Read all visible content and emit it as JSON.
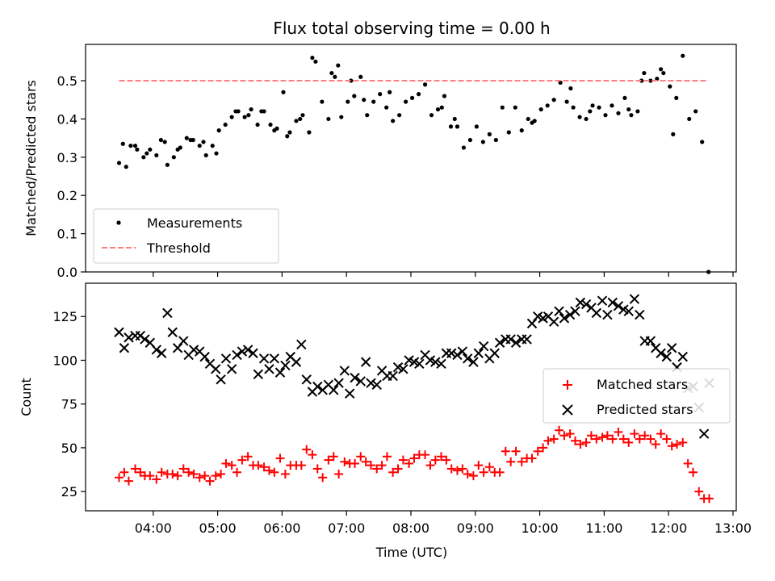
{
  "chart_data": [
    {
      "type": "scatter",
      "title": "Flux total observing time = 0.00 h",
      "xlabel": "",
      "ylabel": "Matched/Predicted stars",
      "xlim_hours": [
        2.95,
        13.05
      ],
      "ylim": [
        0,
        0.595
      ],
      "yticks": [
        0.0,
        0.1,
        0.2,
        0.3,
        0.4,
        0.5
      ],
      "ytick_labels": [
        "0.0",
        "0.1",
        "0.2",
        "0.3",
        "0.4",
        "0.5"
      ],
      "legend_position": "lower-left",
      "series": [
        {
          "name": "Measurements",
          "marker": "dot",
          "color": "#000000",
          "x": [
            3.47,
            3.58,
            3.65,
            3.75,
            3.85,
            3.95,
            4.05,
            4.12,
            4.22,
            4.32,
            4.42,
            4.52,
            4.62,
            4.72,
            4.82,
            4.92,
            5.02,
            5.12,
            5.22,
            5.32,
            5.42,
            5.52,
            5.62,
            5.72,
            5.82,
            5.92,
            6.02,
            6.12,
            6.22,
            6.32,
            6.42,
            6.52,
            6.62,
            6.72,
            6.82,
            6.92,
            7.02,
            7.12,
            7.22,
            7.32,
            7.42,
            7.52,
            7.62,
            7.72,
            7.82,
            7.92,
            8.02,
            8.12,
            8.22,
            8.32,
            8.42,
            8.52,
            8.62,
            8.72,
            8.82,
            8.92,
            9.02,
            9.12,
            9.22,
            9.32,
            9.42,
            9.52,
            9.62,
            9.72,
            9.82,
            9.92,
            10.02,
            10.12,
            10.22,
            10.32,
            10.42,
            10.52,
            10.62,
            10.72,
            10.82,
            10.92,
            11.02,
            11.12,
            11.22,
            11.32,
            11.42,
            11.52,
            11.62,
            11.72,
            11.82,
            11.92,
            12.02,
            12.12,
            12.22,
            12.32,
            12.42,
            12.52,
            12.62,
            3.53,
            3.72,
            3.9,
            4.18,
            4.38,
            4.58,
            4.78,
            4.98,
            5.28,
            5.48,
            5.68,
            5.88,
            6.08,
            6.28,
            6.47,
            6.77,
            6.87,
            7.07,
            7.27,
            7.67,
            8.48,
            8.68,
            9.88,
            10.48,
            10.78,
            11.38,
            11.58,
            11.88,
            12.07
          ],
          "y": [
            0.285,
            0.275,
            0.33,
            0.32,
            0.3,
            0.32,
            0.305,
            0.345,
            0.28,
            0.3,
            0.325,
            0.35,
            0.345,
            0.33,
            0.305,
            0.33,
            0.37,
            0.385,
            0.405,
            0.42,
            0.405,
            0.425,
            0.385,
            0.42,
            0.385,
            0.375,
            0.47,
            0.365,
            0.395,
            0.41,
            0.365,
            0.55,
            0.445,
            0.4,
            0.51,
            0.405,
            0.445,
            0.46,
            0.51,
            0.41,
            0.445,
            0.465,
            0.43,
            0.395,
            0.41,
            0.445,
            0.455,
            0.465,
            0.49,
            0.41,
            0.425,
            0.46,
            0.38,
            0.38,
            0.325,
            0.345,
            0.38,
            0.34,
            0.36,
            0.345,
            0.43,
            0.365,
            0.43,
            0.37,
            0.4,
            0.395,
            0.425,
            0.435,
            0.45,
            0.495,
            0.445,
            0.43,
            0.405,
            0.4,
            0.435,
            0.43,
            0.41,
            0.435,
            0.415,
            0.455,
            0.41,
            0.42,
            0.52,
            0.5,
            0.505,
            0.52,
            0.485,
            0.455,
            0.565,
            0.4,
            0.42,
            0.34,
            0.0,
            0.335,
            0.33,
            0.31,
            0.34,
            0.32,
            0.345,
            0.34,
            0.31,
            0.42,
            0.41,
            0.42,
            0.37,
            0.355,
            0.4,
            0.56,
            0.52,
            0.54,
            0.5,
            0.45,
            0.47,
            0.43,
            0.4,
            0.39,
            0.48,
            0.42,
            0.425,
            0.5,
            0.53,
            0.36
          ]
        },
        {
          "name": "Threshold",
          "marker": "dashed-line",
          "color": "#ff7f7f",
          "x": [
            3.47,
            12.62
          ],
          "y": [
            0.5,
            0.5
          ]
        }
      ]
    },
    {
      "type": "scatter",
      "title": "",
      "xlabel": "Time (UTC)",
      "ylabel": "Count",
      "xlim_hours": [
        2.95,
        13.05
      ],
      "ylim": [
        14,
        144
      ],
      "yticks": [
        25,
        50,
        75,
        100,
        125
      ],
      "ytick_labels": [
        "25",
        "50",
        "75",
        "100",
        "125"
      ],
      "xticks_hours": [
        4,
        5,
        6,
        7,
        8,
        9,
        10,
        11,
        12,
        13
      ],
      "xtick_labels": [
        "04:00",
        "05:00",
        "06:00",
        "07:00",
        "08:00",
        "09:00",
        "10:00",
        "11:00",
        "12:00",
        "13:00"
      ],
      "legend_position": "center-right",
      "series": [
        {
          "name": "Matched stars",
          "marker": "plus",
          "color": "#ff0000",
          "x": [
            3.47,
            3.55,
            3.62,
            3.72,
            3.8,
            3.87,
            3.95,
            4.05,
            4.13,
            4.22,
            4.3,
            4.38,
            4.47,
            4.55,
            4.63,
            4.72,
            4.8,
            4.88,
            4.97,
            5.05,
            5.13,
            5.22,
            5.3,
            5.38,
            5.47,
            5.55,
            5.63,
            5.72,
            5.8,
            5.88,
            5.97,
            6.05,
            6.13,
            6.22,
            6.3,
            6.38,
            6.47,
            6.55,
            6.63,
            6.72,
            6.8,
            6.88,
            6.97,
            7.05,
            7.13,
            7.22,
            7.3,
            7.38,
            7.47,
            7.55,
            7.63,
            7.72,
            7.8,
            7.88,
            7.97,
            8.05,
            8.13,
            8.22,
            8.3,
            8.38,
            8.47,
            8.55,
            8.63,
            8.72,
            8.8,
            8.88,
            8.97,
            9.05,
            9.13,
            9.22,
            9.3,
            9.38,
            9.47,
            9.55,
            9.63,
            9.72,
            9.8,
            9.88,
            9.97,
            10.05,
            10.13,
            10.22,
            10.3,
            10.38,
            10.47,
            10.55,
            10.63,
            10.72,
            10.8,
            10.88,
            10.97,
            11.05,
            11.13,
            11.22,
            11.3,
            11.38,
            11.47,
            11.55,
            11.63,
            11.72,
            11.8,
            11.88,
            11.97,
            12.05,
            12.13,
            12.22,
            12.3,
            12.38,
            12.47,
            12.55,
            12.63
          ],
          "y": [
            33,
            36,
            31,
            38,
            36,
            34,
            34,
            32,
            36,
            35,
            35,
            34,
            38,
            36,
            35,
            33,
            34,
            31,
            34,
            35,
            41,
            40,
            36,
            43,
            45,
            40,
            40,
            39,
            37,
            36,
            44,
            35,
            40,
            40,
            40,
            49,
            46,
            38,
            33,
            43,
            45,
            35,
            42,
            41,
            41,
            45,
            42,
            40,
            38,
            40,
            45,
            36,
            38,
            43,
            41,
            44,
            46,
            46,
            40,
            43,
            45,
            43,
            38,
            37,
            38,
            35,
            34,
            40,
            36,
            39,
            36,
            36,
            48,
            42,
            48,
            42,
            44,
            44,
            48,
            50,
            54,
            55,
            60,
            57,
            58,
            54,
            52,
            53,
            57,
            55,
            56,
            57,
            55,
            59,
            55,
            53,
            58,
            55,
            57,
            55,
            52,
            58,
            55,
            51,
            52,
            53,
            41,
            36,
            25,
            21,
            21
          ]
        },
        {
          "name": "Predicted stars",
          "marker": "x",
          "color": "#000000",
          "x": [
            3.47,
            3.55,
            3.62,
            3.72,
            3.8,
            3.87,
            3.95,
            4.05,
            4.13,
            4.22,
            4.3,
            4.38,
            4.47,
            4.55,
            4.63,
            4.72,
            4.8,
            4.88,
            4.97,
            5.05,
            5.13,
            5.22,
            5.3,
            5.38,
            5.47,
            5.55,
            5.63,
            5.72,
            5.8,
            5.88,
            5.97,
            6.05,
            6.13,
            6.22,
            6.3,
            6.38,
            6.47,
            6.55,
            6.63,
            6.72,
            6.8,
            6.88,
            6.97,
            7.05,
            7.13,
            7.22,
            7.3,
            7.38,
            7.47,
            7.55,
            7.63,
            7.72,
            7.8,
            7.88,
            7.97,
            8.05,
            8.13,
            8.22,
            8.3,
            8.38,
            8.47,
            8.55,
            8.63,
            8.72,
            8.8,
            8.88,
            8.97,
            9.05,
            9.13,
            9.22,
            9.3,
            9.38,
            9.47,
            9.55,
            9.63,
            9.72,
            9.8,
            9.88,
            9.97,
            10.05,
            10.13,
            10.22,
            10.3,
            10.38,
            10.47,
            10.55,
            10.63,
            10.72,
            10.8,
            10.88,
            10.97,
            11.05,
            11.13,
            11.22,
            11.3,
            11.38,
            11.47,
            11.55,
            11.63,
            11.72,
            11.8,
            11.88,
            11.97,
            12.05,
            12.13,
            12.22,
            12.3,
            12.38,
            12.47,
            12.55,
            12.63
          ],
          "y": [
            116,
            107,
            113,
            114,
            114,
            112,
            110,
            106,
            104,
            127,
            116,
            107,
            111,
            103,
            106,
            105,
            102,
            98,
            95,
            89,
            101,
            95,
            103,
            105,
            106,
            104,
            92,
            101,
            95,
            101,
            93,
            97,
            102,
            99,
            109,
            89,
            82,
            85,
            83,
            86,
            83,
            87,
            94,
            81,
            90,
            88,
            99,
            87,
            86,
            94,
            91,
            91,
            96,
            95,
            100,
            99,
            98,
            103,
            100,
            99,
            98,
            104,
            104,
            103,
            105,
            101,
            99,
            104,
            108,
            101,
            104,
            110,
            112,
            112,
            110,
            112,
            112,
            121,
            125,
            124,
            125,
            122,
            128,
            124,
            126,
            128,
            133,
            132,
            130,
            127,
            134,
            126,
            133,
            131,
            129,
            128,
            135,
            126,
            111,
            111,
            107,
            104,
            102,
            107,
            96,
            102,
            84,
            85,
            73,
            58,
            87
          ]
        }
      ]
    }
  ]
}
